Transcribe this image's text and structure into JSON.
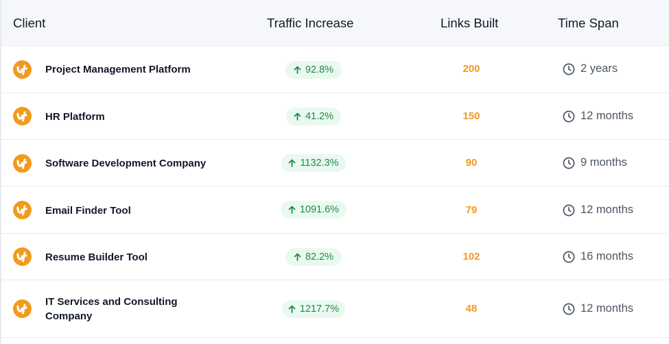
{
  "header": {
    "client": "Client",
    "traffic": "Traffic Increase",
    "links": "Links Built",
    "time": "Time Span"
  },
  "colors": {
    "accent": "#f29a1c",
    "positive_text": "#1f8a4c",
    "positive_bg": "#e9f9ef",
    "header_bg": "#f5f7fb"
  },
  "icons": {
    "client_logo": "client-logo-icon",
    "traffic_arrow": "arrow-up-icon",
    "time": "clock-icon"
  },
  "rows": [
    {
      "client": "Project Management Platform",
      "traffic": "92.8%",
      "links": "200",
      "time": "2 years"
    },
    {
      "client": "HR Platform",
      "traffic": "41.2%",
      "links": "150",
      "time": "12 months"
    },
    {
      "client": "Software Development Company",
      "traffic": "1132.3%",
      "links": "90",
      "time": "9 months"
    },
    {
      "client": "Email Finder Tool",
      "traffic": "1091.6%",
      "links": "79",
      "time": "12 months"
    },
    {
      "client": "Resume Builder Tool",
      "traffic": "82.2%",
      "links": "102",
      "time": "16 months"
    },
    {
      "client": "IT Services and Consulting Company",
      "traffic": "1217.7%",
      "links": "48",
      "time": "12 months"
    }
  ]
}
